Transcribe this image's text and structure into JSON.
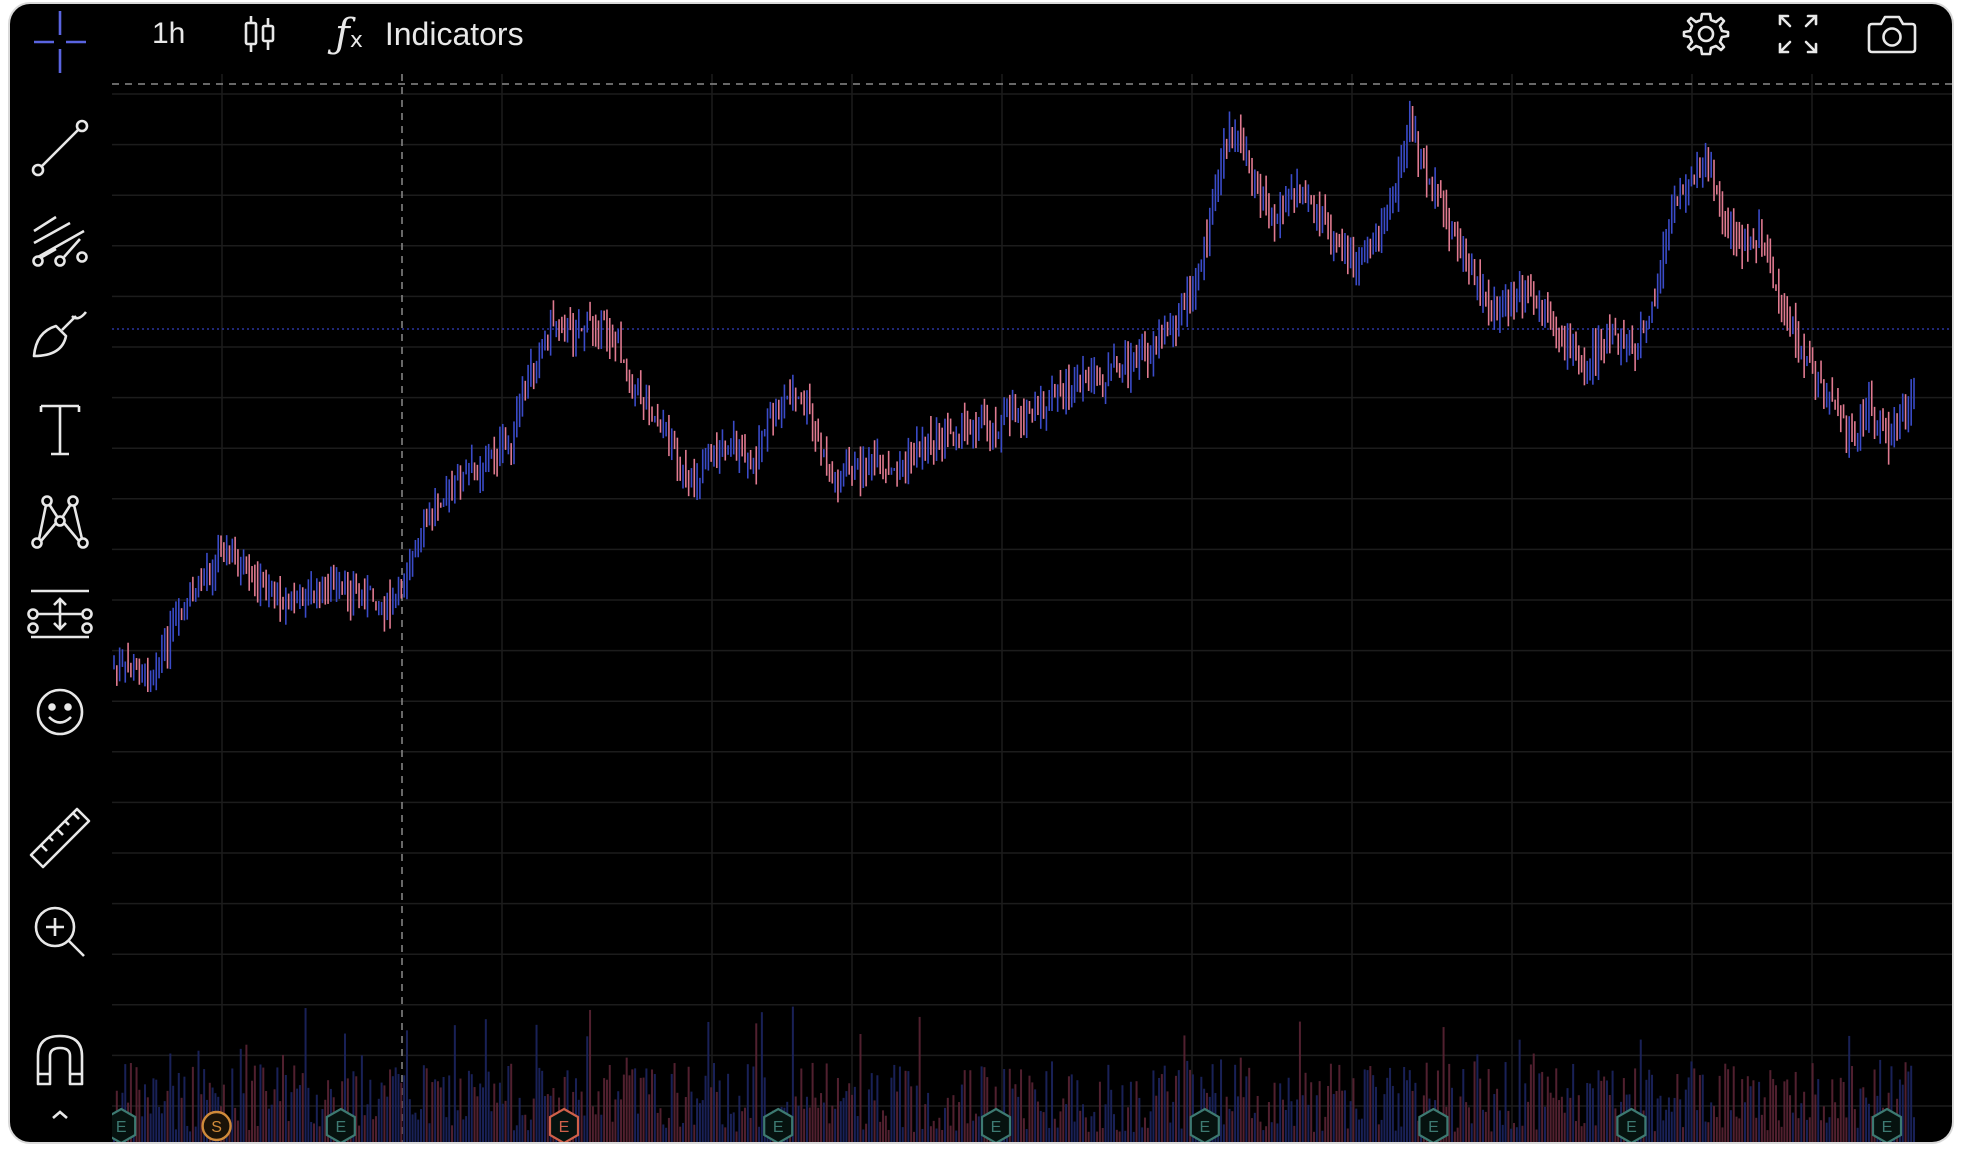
{
  "topbar": {
    "interval_label": "1h",
    "chart_type_icon": "candlestick-icon",
    "indicators_label": "Indicators",
    "settings_icon": "gear-icon",
    "fullscreen_icon": "fullscreen-icon",
    "screenshot_icon": "camera-icon"
  },
  "toolbar": {
    "tools": [
      "crosshair-icon",
      "trend-line-icon",
      "fib-retracement-icon",
      "brush-icon",
      "text-icon",
      "pattern-icon",
      "prediction-icon",
      "emoji-icon",
      "ruler-icon",
      "zoom-in-icon",
      "magnet-icon",
      "chevron-up-icon"
    ]
  },
  "colors": {
    "background": "#000000",
    "up_candle": "#3a4bc8",
    "down_candle": "#e07a90",
    "grid": "#1c1c1c",
    "event_earnings": "#3d7a72",
    "event_split": "#d08a3a",
    "event_earnings_highlight": "#d0604a"
  },
  "chart_data": {
    "type": "candlestick",
    "interval": "1h",
    "price_path": [
      [
        0,
        0.845
      ],
      [
        0.02,
        0.855
      ],
      [
        0.035,
        0.78
      ],
      [
        0.06,
        0.67
      ],
      [
        0.075,
        0.72
      ],
      [
        0.1,
        0.75
      ],
      [
        0.12,
        0.73
      ],
      [
        0.14,
        0.74
      ],
      [
        0.155,
        0.76
      ],
      [
        0.165,
        0.69
      ],
      [
        0.18,
        0.6
      ],
      [
        0.2,
        0.56
      ],
      [
        0.22,
        0.52
      ],
      [
        0.235,
        0.39
      ],
      [
        0.245,
        0.34
      ],
      [
        0.255,
        0.36
      ],
      [
        0.27,
        0.34
      ],
      [
        0.28,
        0.38
      ],
      [
        0.29,
        0.44
      ],
      [
        0.3,
        0.48
      ],
      [
        0.31,
        0.52
      ],
      [
        0.32,
        0.59
      ],
      [
        0.33,
        0.54
      ],
      [
        0.345,
        0.52
      ],
      [
        0.355,
        0.56
      ],
      [
        0.36,
        0.5
      ],
      [
        0.37,
        0.47
      ],
      [
        0.375,
        0.45
      ],
      [
        0.385,
        0.47
      ],
      [
        0.395,
        0.55
      ],
      [
        0.4,
        0.58
      ],
      [
        0.41,
        0.56
      ],
      [
        0.42,
        0.55
      ],
      [
        0.43,
        0.57
      ],
      [
        0.44,
        0.55
      ],
      [
        0.45,
        0.52
      ],
      [
        0.46,
        0.51
      ],
      [
        0.47,
        0.5
      ],
      [
        0.48,
        0.49
      ],
      [
        0.49,
        0.5
      ],
      [
        0.5,
        0.47
      ],
      [
        0.51,
        0.48
      ],
      [
        0.52,
        0.46
      ],
      [
        0.53,
        0.44
      ],
      [
        0.54,
        0.43
      ],
      [
        0.55,
        0.43
      ],
      [
        0.56,
        0.41
      ],
      [
        0.575,
        0.39
      ],
      [
        0.585,
        0.35
      ],
      [
        0.6,
        0.31
      ],
      [
        0.61,
        0.18
      ],
      [
        0.62,
        0.06
      ],
      [
        0.63,
        0.11
      ],
      [
        0.645,
        0.2
      ],
      [
        0.66,
        0.14
      ],
      [
        0.675,
        0.22
      ],
      [
        0.69,
        0.27
      ],
      [
        0.7,
        0.22
      ],
      [
        0.71,
        0.17
      ],
      [
        0.72,
        0.06
      ],
      [
        0.73,
        0.14
      ],
      [
        0.74,
        0.19
      ],
      [
        0.75,
        0.25
      ],
      [
        0.76,
        0.31
      ],
      [
        0.77,
        0.33
      ],
      [
        0.785,
        0.3
      ],
      [
        0.8,
        0.35
      ],
      [
        0.815,
        0.41
      ],
      [
        0.83,
        0.37
      ],
      [
        0.845,
        0.38
      ],
      [
        0.855,
        0.33
      ],
      [
        0.865,
        0.19
      ],
      [
        0.875,
        0.13
      ],
      [
        0.885,
        0.12
      ],
      [
        0.895,
        0.2
      ],
      [
        0.905,
        0.23
      ],
      [
        0.915,
        0.22
      ],
      [
        0.925,
        0.31
      ],
      [
        0.935,
        0.37
      ],
      [
        0.945,
        0.43
      ],
      [
        0.955,
        0.46
      ],
      [
        0.965,
        0.52
      ],
      [
        0.975,
        0.47
      ],
      [
        0.985,
        0.51
      ],
      [
        0.995,
        0.48
      ],
      [
        1.0,
        0.44
      ]
    ],
    "horizontal_levels": [
      {
        "style": "dashed",
        "level_frac": 0.0
      },
      {
        "style": "dotted",
        "level_frac": 0.355
      }
    ],
    "volume_bars": true,
    "events": [
      {
        "type": "E",
        "pos": 0.004
      },
      {
        "type": "S",
        "pos": 0.057
      },
      {
        "type": "E",
        "pos": 0.126
      },
      {
        "type": "E",
        "pos": 0.25,
        "highlight": true
      },
      {
        "type": "E",
        "pos": 0.369
      },
      {
        "type": "E",
        "pos": 0.49
      },
      {
        "type": "E",
        "pos": 0.606
      },
      {
        "type": "E",
        "pos": 0.733
      },
      {
        "type": "E",
        "pos": 0.843
      },
      {
        "type": "E",
        "pos": 0.985
      }
    ]
  }
}
